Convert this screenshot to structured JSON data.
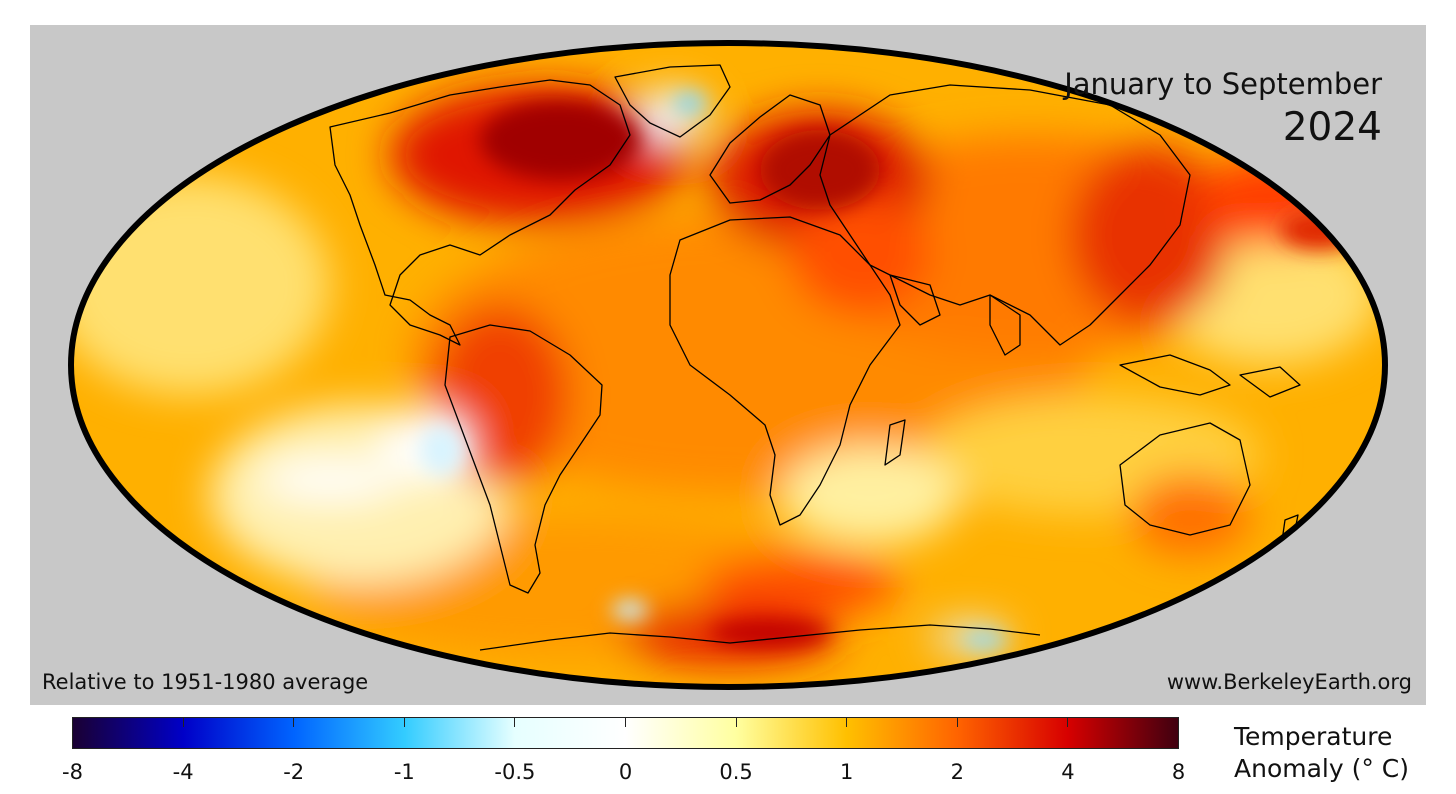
{
  "map": {
    "projection": "Mollweide",
    "title_line1": "January to September",
    "title_line2": "2024",
    "reference_note": "Relative to 1951-1980 average",
    "source": "www.BerkeleyEarth.org"
  },
  "colorbar": {
    "title_line1": "Temperature",
    "title_line2": "Anomaly (° C)",
    "ticks": [
      "-8",
      "-4",
      "-2",
      "-1",
      "-0.5",
      "0",
      "0.5",
      "1",
      "2",
      "4",
      "8"
    ],
    "colors": [
      "#1a0033",
      "#0000c8",
      "#0064ff",
      "#33ccff",
      "#e6ffff",
      "#ffffff",
      "#ffffa0",
      "#ffc000",
      "#ff6400",
      "#d70000",
      "#400010"
    ]
  }
}
